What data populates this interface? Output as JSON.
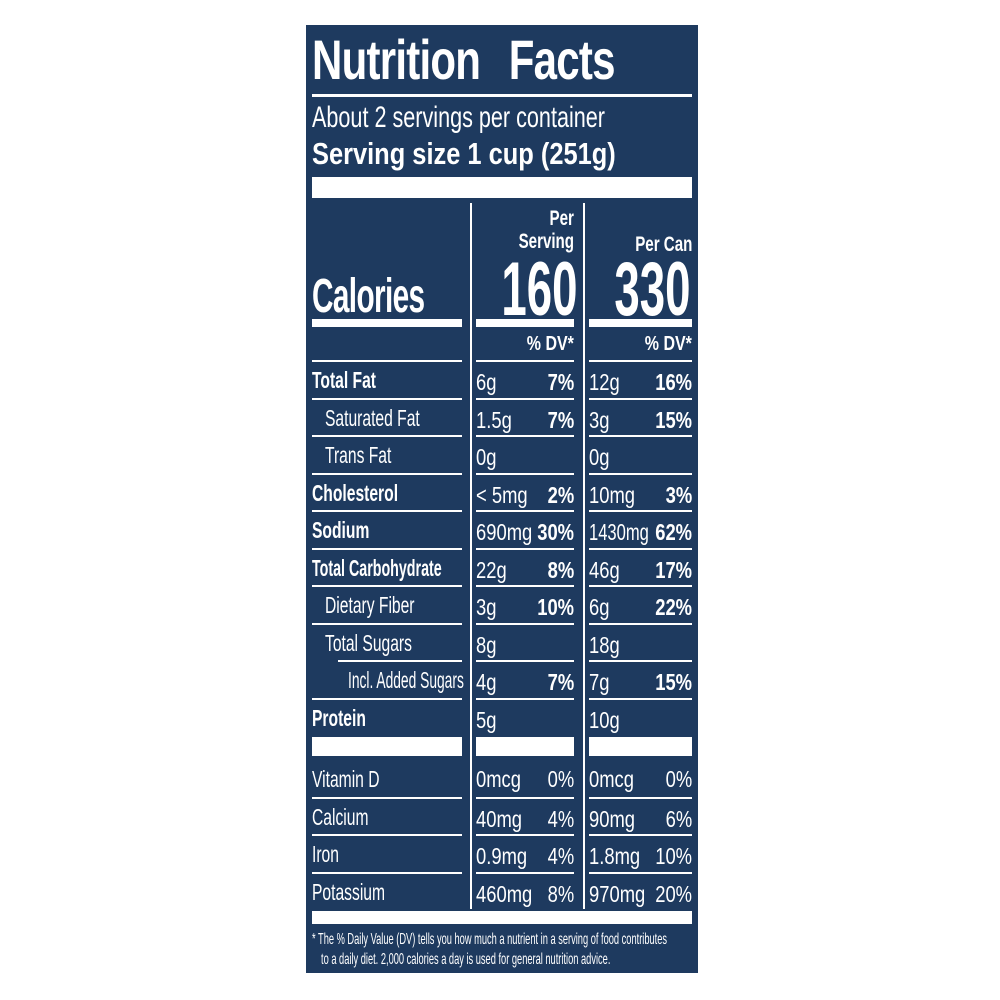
{
  "colors": {
    "label_background": "#1e3a5f",
    "text": "#ffffff",
    "page_background": "#ffffff"
  },
  "header": {
    "title": "Nutrition Facts",
    "servings_per_container": "About 2 servings per container",
    "serving_size": "Serving size 1 cup (251g)"
  },
  "calories": {
    "label": "Calories",
    "per_serving_header_line1": "Per",
    "per_serving_header_line2": "Serving",
    "per_can_header": "Per Can",
    "per_serving_value": "160",
    "per_can_value": "330"
  },
  "dv_header": {
    "per_serving": "% DV*",
    "per_can": "% DV*"
  },
  "rows": [
    {
      "label": "Total Fat",
      "serving_amount": "6g",
      "serving_dv": "7%",
      "can_amount": "12g",
      "can_dv": "16%"
    },
    {
      "label": "Saturated Fat",
      "serving_amount": "1.5g",
      "serving_dv": "7%",
      "can_amount": "3g",
      "can_dv": "15%"
    },
    {
      "label": "Trans Fat",
      "serving_amount": "0g",
      "serving_dv": "",
      "can_amount": "0g",
      "can_dv": ""
    },
    {
      "label": "Cholesterol",
      "serving_amount": "< 5mg",
      "serving_dv": "2%",
      "can_amount": "10mg",
      "can_dv": "3%"
    },
    {
      "label": "Sodium",
      "serving_amount": "690mg",
      "serving_dv": "30%",
      "can_amount": "1430mg",
      "can_dv": "62%"
    },
    {
      "label": "Total Carbohydrate",
      "serving_amount": "22g",
      "serving_dv": "8%",
      "can_amount": "46g",
      "can_dv": "17%"
    },
    {
      "label": "Dietary Fiber",
      "serving_amount": "3g",
      "serving_dv": "10%",
      "can_amount": "6g",
      "can_dv": "22%"
    },
    {
      "label": "Total Sugars",
      "serving_amount": "8g",
      "serving_dv": "",
      "can_amount": "18g",
      "can_dv": ""
    },
    {
      "label": "Incl. Added Sugars",
      "serving_amount": "4g",
      "serving_dv": "7%",
      "can_amount": "7g",
      "can_dv": "15%"
    },
    {
      "label": "Protein",
      "serving_amount": "5g",
      "serving_dv": "",
      "can_amount": "10g",
      "can_dv": ""
    }
  ],
  "vitamins": [
    {
      "label": "Vitamin D",
      "serving_amount": "0mcg",
      "serving_dv": "0%",
      "can_amount": "0mcg",
      "can_dv": "0%"
    },
    {
      "label": "Calcium",
      "serving_amount": "40mg",
      "serving_dv": "4%",
      "can_amount": "90mg",
      "can_dv": "6%"
    },
    {
      "label": "Iron",
      "serving_amount": "0.9mg",
      "serving_dv": "4%",
      "can_amount": "1.8mg",
      "can_dv": "10%"
    },
    {
      "label": "Potassium",
      "serving_amount": "460mg",
      "serving_dv": "8%",
      "can_amount": "970mg",
      "can_dv": "20%"
    }
  ],
  "footnote": {
    "line1": "* The % Daily Value (DV) tells you how much a nutrient in a serving of food contributes",
    "line2": "to a daily diet. 2,000 calories a day is used for general nutrition advice."
  }
}
